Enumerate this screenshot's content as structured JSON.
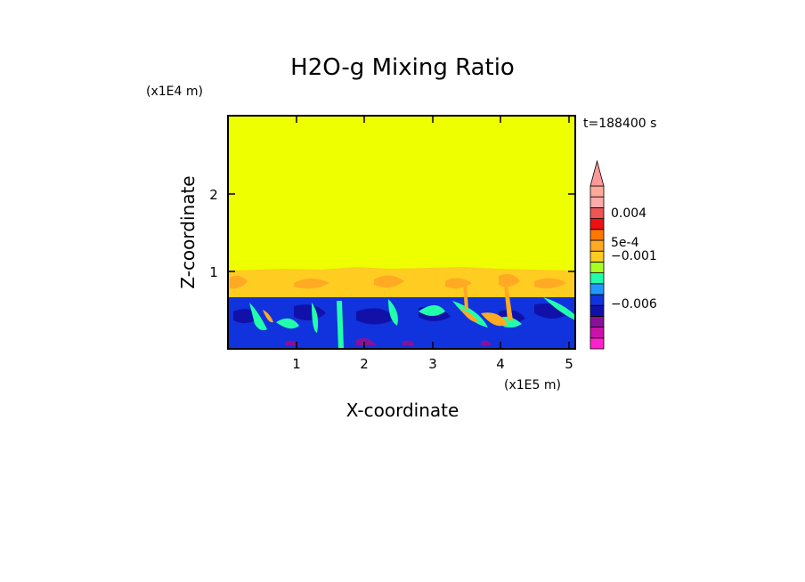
{
  "chart_data": {
    "type": "heatmap",
    "title": "H2O-g Mixing Ratio",
    "xlabel": "X-coordinate",
    "ylabel": "Z-coordinate",
    "x_scale_label": "(x1E5 m)",
    "y_scale_label": "(x1E4 m)",
    "time_label": "t=188400 s",
    "xlim": [
      0,
      5.1
    ],
    "ylim": [
      0,
      3.0
    ],
    "x_ticks": [
      1,
      2,
      3,
      4,
      5
    ],
    "y_ticks": [
      1,
      2
    ],
    "grid": false,
    "colorbar": {
      "extend": "max",
      "colors": [
        "#ff22cc",
        "#cc11aa",
        "#881199",
        "#1111aa",
        "#1133dd",
        "#2299ff",
        "#22ffaa",
        "#aaff22",
        "#ffcc22",
        "#ffaa22",
        "#ff7700",
        "#ee1111",
        "#ee5555",
        "#ffaaaa",
        "#ffaa99"
      ],
      "labels": [
        {
          "text": "0.004",
          "value": 0.004
        },
        {
          "text": "5e-4",
          "value": 0.0005
        },
        {
          "text": "−0.001",
          "value": -0.001
        },
        {
          "text": "−0.006",
          "value": -0.006
        }
      ]
    },
    "layers": [
      {
        "name": "upper",
        "z_range": [
          1.05,
          3.0
        ],
        "color": "#eeff00"
      },
      {
        "name": "transition",
        "z_range": [
          0.7,
          1.05
        ],
        "color": "#ffcc22"
      },
      {
        "name": "lower",
        "z_range": [
          0,
          0.7
        ],
        "color": "#1133dd"
      }
    ]
  }
}
